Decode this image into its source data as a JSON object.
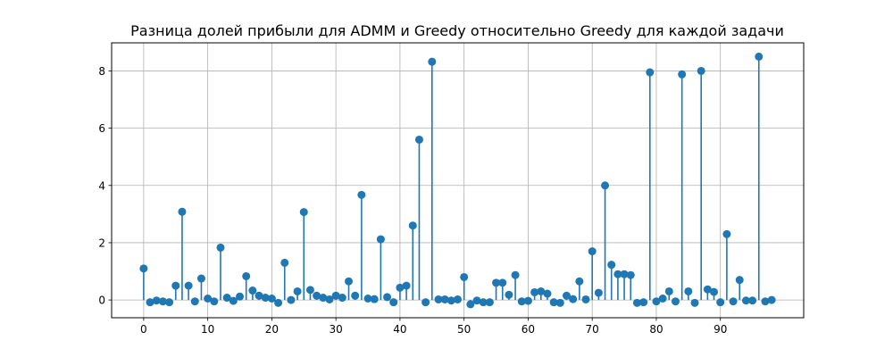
{
  "chart_data": {
    "type": "stem",
    "title": "Разница долей прибыли для ADMM и Greedy относительно Greedy для каждой задачи",
    "xlabel": "",
    "ylabel": "",
    "xlim": [
      -5,
      103
    ],
    "ylim": [
      -0.62,
      8.98
    ],
    "xticks": [
      0,
      10,
      20,
      30,
      40,
      50,
      60,
      70,
      80,
      90
    ],
    "yticks": [
      0,
      2,
      4,
      6,
      8
    ],
    "grid": true,
    "color": "#1f77b4",
    "x": [
      0,
      1,
      2,
      3,
      4,
      5,
      6,
      7,
      8,
      9,
      10,
      11,
      12,
      13,
      14,
      15,
      16,
      17,
      18,
      19,
      20,
      21,
      22,
      23,
      24,
      25,
      26,
      27,
      28,
      29,
      30,
      31,
      32,
      33,
      34,
      35,
      36,
      37,
      38,
      39,
      40,
      41,
      42,
      43,
      44,
      45,
      46,
      47,
      48,
      49,
      50,
      51,
      52,
      53,
      54,
      55,
      56,
      57,
      58,
      59,
      60,
      61,
      62,
      63,
      64,
      65,
      66,
      67,
      68,
      69,
      70,
      71,
      72,
      73,
      74,
      75,
      76,
      77,
      78,
      79,
      80,
      81,
      82,
      83,
      84,
      85,
      86,
      87,
      88,
      89,
      90,
      91,
      92,
      93,
      94,
      95,
      96,
      97,
      98
    ],
    "values": [
      1.1,
      -0.08,
      -0.02,
      -0.05,
      -0.08,
      0.5,
      3.08,
      0.5,
      -0.05,
      0.75,
      0.05,
      -0.05,
      1.83,
      0.08,
      -0.03,
      0.12,
      0.83,
      0.33,
      0.15,
      0.08,
      0.05,
      -0.1,
      1.3,
      0.0,
      0.3,
      3.07,
      0.35,
      0.15,
      0.08,
      0.02,
      0.15,
      0.08,
      0.65,
      0.15,
      3.67,
      0.05,
      0.03,
      2.12,
      0.1,
      -0.08,
      0.43,
      0.5,
      2.6,
      5.6,
      -0.08,
      8.32,
      0.02,
      0.02,
      -0.02,
      0.02,
      0.8,
      -0.15,
      -0.02,
      -0.08,
      -0.08,
      0.6,
      0.6,
      0.18,
      0.87,
      -0.05,
      -0.03,
      0.27,
      0.3,
      0.22,
      -0.08,
      -0.1,
      0.15,
      0.03,
      0.65,
      0.02,
      1.7,
      0.25,
      4.0,
      1.23,
      0.9,
      0.9,
      0.87,
      -0.1,
      -0.08,
      7.95,
      -0.05,
      0.05,
      0.3,
      -0.05,
      7.88,
      0.3,
      -0.1,
      8.0,
      0.37,
      0.28,
      -0.08,
      2.3,
      -0.05,
      0.7,
      -0.02,
      -0.02,
      8.5,
      -0.05,
      0.0
    ]
  }
}
